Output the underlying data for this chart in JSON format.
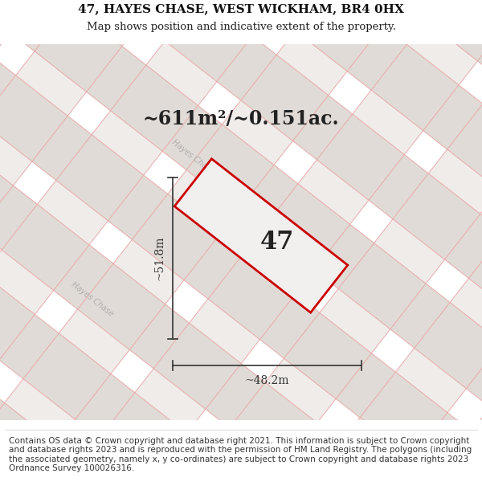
{
  "title_line1": "47, HAYES CHASE, WEST WICKHAM, BR4 0HX",
  "title_line2": "Map shows position and indicative extent of the property.",
  "area_text": "~611m²/~0.151ac.",
  "plot_number": "47",
  "width_label": "~48.2m",
  "height_label": "~51.8m",
  "footer_text": "Contains OS data © Crown copyright and database right 2021. This information is subject to Crown copyright and database rights 2023 and is reproduced with the permission of HM Land Registry. The polygons (including the associated geometry, namely x, y co-ordinates) are subject to Crown copyright and database rights 2023 Ordnance Survey 100026316.",
  "bg_color": "#f2f0ee",
  "block_color": "#e0dbd6",
  "road_line_color": "#e8a8a8",
  "plot_fill_color": "#f2f0ee",
  "plot_edge_color": "#cc0000",
  "dim_line_color": "#333333",
  "text_color": "#222222",
  "road_label_color": "#aaaaaa",
  "title_fontsize": 11,
  "subtitle_fontsize": 9.5,
  "area_fontsize": 17,
  "plot_num_fontsize": 22,
  "dim_fontsize": 10,
  "road_fontsize": 7,
  "footer_fontsize": 7.5
}
